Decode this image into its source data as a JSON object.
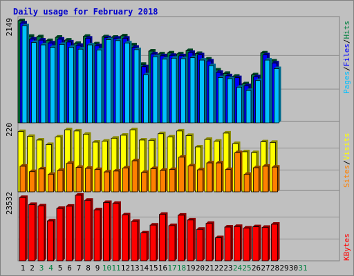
{
  "chart_data": {
    "title": "Daily usage for February 2018",
    "type": "bar",
    "x": [
      "1",
      "2",
      "3",
      "4",
      "5",
      "6",
      "7",
      "8",
      "9",
      "10",
      "11",
      "12",
      "13",
      "14",
      "15",
      "16",
      "17",
      "18",
      "19",
      "20",
      "21",
      "22",
      "23",
      "24",
      "25",
      "26",
      "27",
      "28",
      "29",
      "30",
      "31"
    ],
    "weekend_days": [
      3,
      4,
      10,
      11,
      17,
      18,
      24,
      25,
      31
    ],
    "panels": [
      {
        "id": "hits",
        "max_label": "2149",
        "ymax": 2149,
        "series": [
          {
            "name": "Hits",
            "color": "#008040",
            "values": [
              2149,
              1820,
              1810,
              1730,
              1800,
              1740,
              1670,
              1820,
              1660,
              1810,
              1800,
              1830,
              1640,
              1230,
              1510,
              1450,
              1470,
              1450,
              1520,
              1460,
              1340,
              1110,
              1040,
              980,
              820,
              1010,
              1470,
              1300,
              0,
              0,
              0
            ]
          },
          {
            "name": "Files",
            "color": "#0000ff",
            "values": [
              2100,
              1760,
              1740,
              1680,
              1760,
              1700,
              1630,
              1780,
              1620,
              1790,
              1780,
              1780,
              1590,
              1180,
              1450,
              1410,
              1420,
              1410,
              1480,
              1430,
              1300,
              1060,
              990,
              950,
              780,
              970,
              1430,
              1260,
              0,
              0,
              0
            ]
          },
          {
            "name": "Pages",
            "color": "#00c0ff",
            "values": [
              2040,
              1690,
              1640,
              1590,
              1650,
              1590,
              1550,
              1640,
              1530,
              1750,
              1730,
              1680,
              1540,
              1010,
              1390,
              1340,
              1360,
              1350,
              1370,
              1320,
              1200,
              950,
              930,
              750,
              680,
              890,
              1320,
              1140,
              0,
              0,
              0
            ]
          }
        ]
      },
      {
        "id": "visits",
        "max_label": "220",
        "ymax": 220,
        "series": [
          {
            "name": "Visits",
            "color": "#ffff00",
            "values": [
              200,
              184,
              172,
              157,
              182,
              206,
              202,
              191,
              165,
              168,
              178,
              188,
              206,
              172,
              171,
              193,
              182,
              202,
              187,
              149,
              174,
              168,
              195,
              160,
              133,
              130,
              166,
              164,
              0,
              0,
              0
            ]
          },
          {
            "name": "Sites",
            "color": "#ff8000",
            "values": [
              85,
              67,
              76,
              58,
              71,
              95,
              81,
              78,
              74,
              66,
              69,
              79,
              103,
              64,
              77,
              71,
              74,
              115,
              86,
              73,
              96,
              96,
              74,
              130,
              58,
              80,
              85,
              82,
              0,
              0,
              0
            ]
          }
        ]
      },
      {
        "id": "kbytes",
        "max_label": "23532",
        "ymax": 23532,
        "series": [
          {
            "name": "KBytes",
            "color": "#ff0000",
            "values": [
              22500,
              20000,
              19500,
              14200,
              18600,
              19400,
              23300,
              21500,
              18100,
              20700,
              20400,
              16300,
              14000,
              9900,
              12700,
              16500,
              12500,
              16200,
              14500,
              11200,
              13300,
              8200,
              12000,
              12200,
              11600,
              12100,
              11900,
              13000,
              0,
              0,
              0
            ]
          }
        ]
      }
    ]
  },
  "legend": {
    "hits": {
      "pages": "Pages",
      "files": "Files",
      "hits": "Hits",
      "sep": "/"
    },
    "visits": {
      "sites": "Sites",
      "visits": "Visits",
      "sep": "/"
    },
    "kbytes": {
      "kbytes": "KBytes"
    }
  },
  "colors": {
    "background": "#c0c0c0",
    "title": "#0000cc",
    "weekday_label": "#000000",
    "weekend_label": "#008040"
  }
}
